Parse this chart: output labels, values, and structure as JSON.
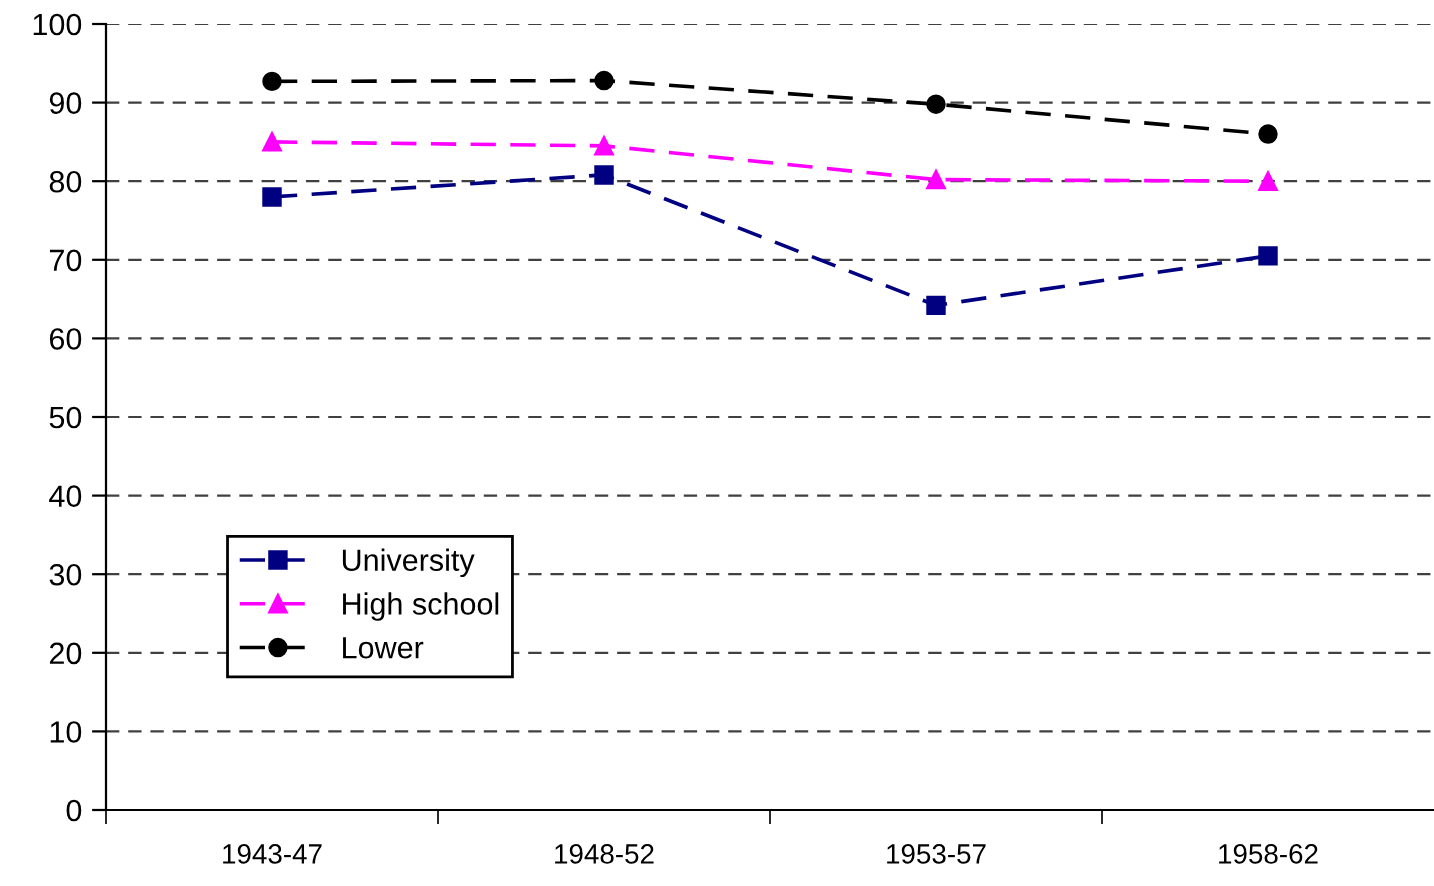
{
  "chart_data": {
    "type": "line",
    "categories": [
      "1943-47",
      "1948-52",
      "1953-57",
      "1958-62"
    ],
    "series": [
      {
        "name": "University",
        "color": "#000080",
        "marker": "square",
        "values": [
          78,
          80.8,
          64.2,
          70.5
        ]
      },
      {
        "name": "High school",
        "color": "#ff00ff",
        "marker": "triangle",
        "values": [
          85,
          84.5,
          80.2,
          80
        ]
      },
      {
        "name": "Lower",
        "color": "#000000",
        "marker": "circle",
        "values": [
          92.7,
          92.8,
          89.8,
          86
        ]
      }
    ],
    "line_style": "dashed",
    "ylim": [
      0,
      100
    ],
    "yticks": [
      0,
      10,
      20,
      30,
      40,
      50,
      60,
      70,
      80,
      90,
      100
    ],
    "grid": "y",
    "legend": "bottom left"
  }
}
